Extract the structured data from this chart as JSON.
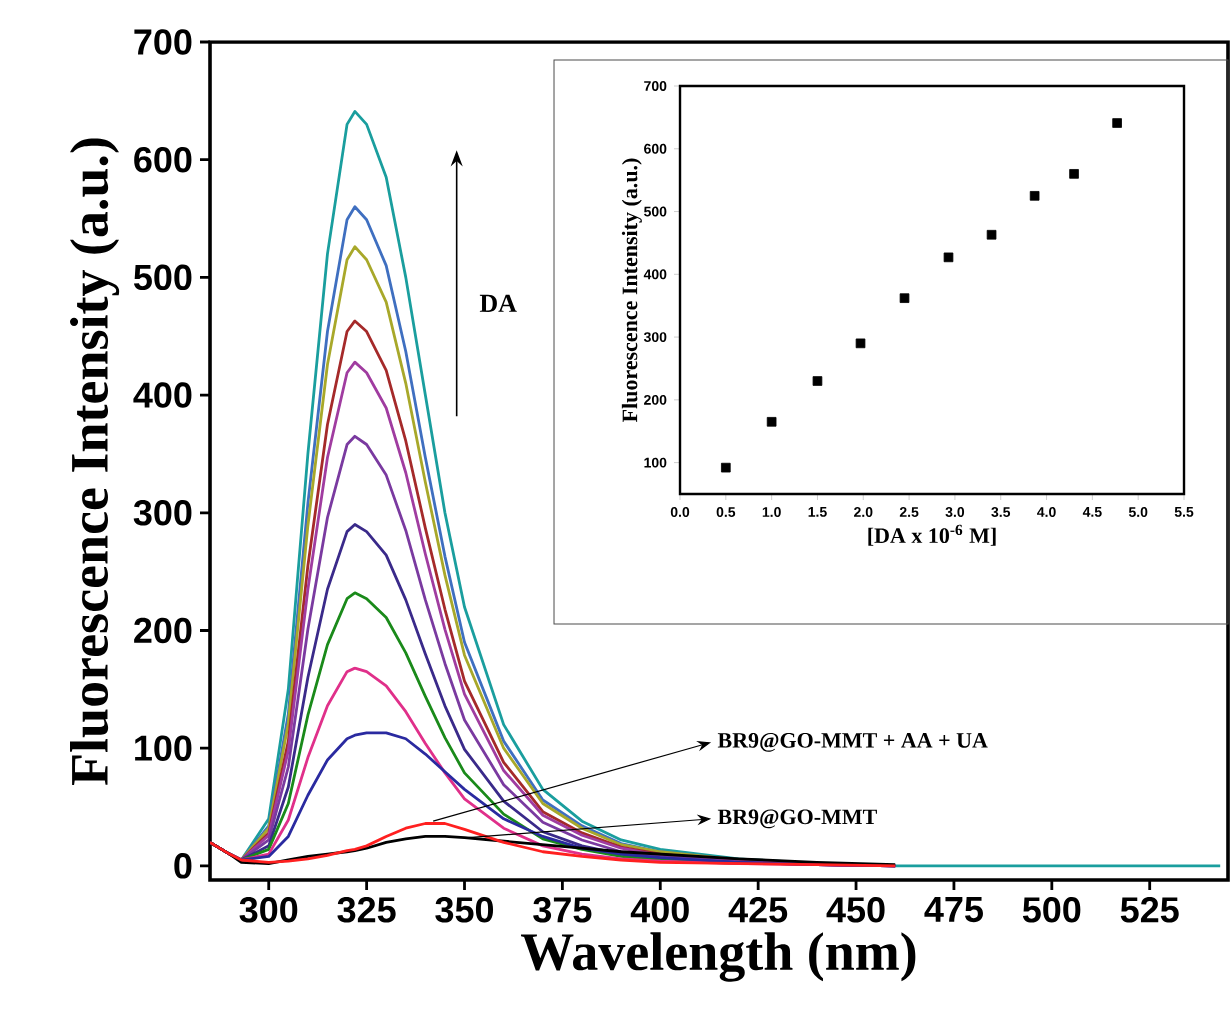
{
  "chart_data": [
    {
      "type": "line",
      "xlabel": "Wavelength (nm)",
      "ylabel": "Fluorescence Intensity (a.u.)",
      "x": [
        285,
        290,
        293,
        300,
        305,
        310,
        315,
        320,
        322,
        325,
        330,
        335,
        340,
        345,
        350,
        360,
        370,
        380,
        390,
        400,
        420,
        440,
        460,
        480,
        500,
        520,
        543
      ],
      "series": [
        {
          "color": "#1a9e9e",
          "values": [
            20,
            10,
            5,
            40,
            150,
            350,
            520,
            630,
            641,
            630,
            585,
            500,
            400,
            300,
            220,
            120,
            65,
            38,
            22,
            14,
            6,
            2,
            0,
            0,
            0,
            0,
            0
          ]
        },
        {
          "color": "#3f6fc0",
          "values": [
            20,
            10,
            5,
            34,
            129,
            308,
            454,
            549,
            560,
            549,
            510,
            437,
            347,
            263,
            190,
            106,
            56,
            34,
            19,
            12,
            5,
            null,
            null,
            null,
            null,
            null,
            null
          ]
        },
        {
          "color": "#a8a82a",
          "values": [
            20,
            10,
            5,
            32,
            121,
            289,
            426,
            515,
            526,
            515,
            479,
            410,
            326,
            247,
            179,
            100,
            53,
            32,
            18,
            12,
            5,
            null,
            null,
            null,
            null,
            null,
            null
          ]
        },
        {
          "color": "#a52a2a",
          "values": [
            20,
            10,
            5,
            28,
            106,
            255,
            375,
            454,
            463,
            454,
            421,
            361,
            287,
            218,
            157,
            88,
            46,
            28,
            16,
            10,
            4,
            1,
            0,
            null,
            null,
            null,
            null
          ]
        },
        {
          "color": "#a03ca0",
          "values": [
            20,
            10,
            5,
            26,
            98,
            235,
            347,
            419,
            428,
            419,
            389,
            334,
            265,
            201,
            146,
            81,
            43,
            26,
            15,
            9,
            4,
            1,
            0,
            null,
            null,
            null,
            null
          ]
        },
        {
          "color": "#7a3aa0",
          "values": [
            20,
            10,
            5,
            22,
            84,
            201,
            296,
            358,
            365,
            358,
            332,
            285,
            226,
            172,
            124,
            69,
            37,
            22,
            12,
            8,
            3,
            1,
            0,
            null,
            null,
            null,
            null
          ]
        },
        {
          "color": "#3a2a8a",
          "values": [
            20,
            10,
            5,
            17,
            67,
            160,
            235,
            284,
            290,
            284,
            264,
            226,
            180,
            136,
            99,
            55,
            29,
            17,
            10,
            6,
            3,
            1,
            0,
            null,
            null,
            null,
            null
          ]
        },
        {
          "color": "#1a8a1a",
          "values": [
            20,
            10,
            5,
            14,
            53,
            128,
            188,
            227,
            232,
            227,
            211,
            181,
            144,
            109,
            79,
            44,
            23,
            14,
            8,
            5,
            2,
            null,
            null,
            null,
            null,
            null,
            null
          ]
        },
        {
          "color": "#e0308a",
          "values": [
            20,
            10,
            5,
            10,
            39,
            92,
            136,
            165,
            168,
            165,
            153,
            131,
            104,
            79,
            57,
            32,
            17,
            10,
            6,
            4,
            2,
            1,
            0,
            null,
            null,
            null,
            null
          ]
        },
        {
          "color": "#2a2aa0",
          "values": [
            20,
            10,
            5,
            8,
            25,
            60,
            90,
            108,
            111,
            113,
            113,
            108,
            95,
            80,
            65,
            40,
            25,
            15,
            10,
            7,
            3,
            1,
            0,
            null,
            null,
            null,
            null
          ]
        },
        {
          "color": "#000000",
          "values": [
            20,
            10,
            3,
            2,
            5,
            8,
            10,
            12,
            13,
            15,
            20,
            23,
            25,
            25,
            24,
            21,
            18,
            15,
            12,
            10,
            6,
            3,
            1,
            null,
            null,
            null,
            null
          ]
        },
        {
          "color": "#ff2020",
          "values": [
            20,
            10,
            5,
            3,
            4,
            6,
            9,
            13,
            14,
            17,
            25,
            32,
            36,
            36,
            31,
            20,
            12,
            8,
            5,
            3,
            2,
            1,
            0,
            null,
            null,
            null,
            null
          ]
        }
      ],
      "xlim": [
        285,
        545
      ],
      "ylim": [
        -12,
        700
      ],
      "xticks": [
        300,
        325,
        350,
        375,
        400,
        425,
        450,
        475,
        500,
        525
      ],
      "yticks": [
        0,
        100,
        200,
        300,
        400,
        500,
        600,
        700
      ],
      "annotations": [
        {
          "text": "BR9@GO-MMT + AA + UA",
          "x": 342,
          "y": 38
        },
        {
          "text": "BR9@GO-MMT",
          "x": 351,
          "y": 24
        },
        "DA"
      ]
    },
    {
      "type": "scatter",
      "xlabel": "[DA x 10$^{-6}$ M]",
      "ylabel": "Fluorescence Intensity (a.u.)",
      "x": [
        0.5,
        1.0,
        1.5,
        1.97,
        2.45,
        2.93,
        3.4,
        3.87,
        4.3,
        4.77
      ],
      "values": [
        92,
        165,
        230,
        290,
        362,
        427,
        463,
        525,
        560,
        641
      ],
      "color": "#000000",
      "marker": "square",
      "xlim": [
        0,
        5.5
      ],
      "ylim": [
        50,
        700
      ],
      "xticks": [
        {
          "value": 0,
          "label": "0.0"
        },
        {
          "value": 0.5,
          "label": "0.5"
        },
        {
          "value": 1,
          "label": "1.0"
        },
        {
          "value": 1.5,
          "label": "1.5"
        },
        {
          "value": 2,
          "label": "2.0"
        },
        {
          "value": 2.5,
          "label": "2.5"
        },
        {
          "value": 3,
          "label": "3.0"
        },
        {
          "value": 3.5,
          "label": "3.5"
        },
        {
          "value": 4,
          "label": "4.0"
        },
        {
          "value": 4.5,
          "label": "4.5"
        },
        {
          "value": 5,
          "label": "5.0"
        },
        {
          "value": 5.5,
          "label": "5.5"
        }
      ],
      "yticks": [
        100,
        200,
        300,
        400,
        500,
        600,
        700
      ]
    }
  ]
}
